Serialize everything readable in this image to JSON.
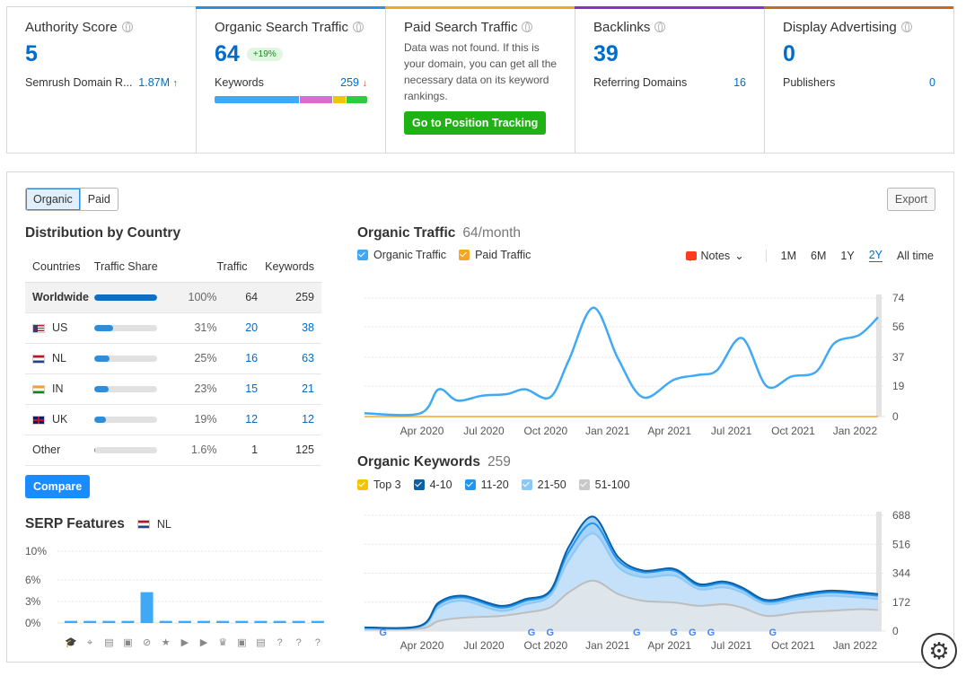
{
  "colors": {
    "accent": "#006dca",
    "traffic": "#3fa9f5",
    "paid": "#f5a623",
    "green": "#1fb214"
  },
  "cards": {
    "authority": {
      "title": "Authority Score",
      "value": "5",
      "row_label": "Semrush Domain R...",
      "row_value": "1.87M",
      "arrow": "↑"
    },
    "organic": {
      "title": "Organic Search Traffic",
      "value": "64",
      "badge": "+19%",
      "row_label": "Keywords",
      "row_value": "259",
      "arrow": "↓",
      "keyword_bar": [
        {
          "pct": 56,
          "color": "#3fa9f5"
        },
        {
          "pct": 22,
          "color": "#d66fd1"
        },
        {
          "pct": 8,
          "color": "#f5c400"
        },
        {
          "pct": 14,
          "color": "#2ecc40"
        }
      ]
    },
    "paid": {
      "title": "Paid Search Traffic",
      "text": "Data was not found. If this is your domain, you can get all the necessary data on its keyword rankings.",
      "button": "Go to Position Tracking"
    },
    "backlinks": {
      "title": "Backlinks",
      "value": "39",
      "row_label": "Referring Domains",
      "row_value": "16"
    },
    "display": {
      "title": "Display Advertising",
      "value": "0",
      "row_label": "Publishers",
      "row_value": "0"
    }
  },
  "toggle": {
    "organic": "Organic",
    "paid": "Paid"
  },
  "export": "Export",
  "distribution": {
    "title": "Distribution by Country",
    "headers": [
      "Countries",
      "Traffic Share",
      "Traffic",
      "Keywords"
    ],
    "rows": [
      {
        "country": "Worldwide",
        "flag": "",
        "share": 100,
        "share_label": "100%",
        "traffic": "64",
        "keywords": "259"
      },
      {
        "country": "US",
        "flag": "us",
        "share": 31,
        "share_label": "31%",
        "traffic": "20",
        "keywords": "38"
      },
      {
        "country": "NL",
        "flag": "nl",
        "share": 25,
        "share_label": "25%",
        "traffic": "16",
        "keywords": "63"
      },
      {
        "country": "IN",
        "flag": "in",
        "share": 23,
        "share_label": "23%",
        "traffic": "15",
        "keywords": "21"
      },
      {
        "country": "UK",
        "flag": "uk",
        "share": 19,
        "share_label": "19%",
        "traffic": "12",
        "keywords": "12"
      },
      {
        "country": "Other",
        "flag": "",
        "share": 1.6,
        "share_label": "1.6%",
        "traffic": "1",
        "keywords": "125"
      }
    ],
    "compare": "Compare"
  },
  "serp": {
    "title": "SERP Features",
    "country": "NL"
  },
  "traffic": {
    "title": "Organic Traffic",
    "subtitle": "64/month",
    "legend": [
      "Organic Traffic",
      "Paid Traffic"
    ],
    "notes": "Notes",
    "periods": [
      "1M",
      "6M",
      "1Y",
      "2Y",
      "All time"
    ],
    "selected_period": "2Y"
  },
  "keywords": {
    "title": "Organic Keywords",
    "subtitle": "259",
    "legend": [
      {
        "label": "Top 3",
        "color": "#f5c400"
      },
      {
        "label": "4-10",
        "color": "#0b5fa5"
      },
      {
        "label": "11-20",
        "color": "#2196f3"
      },
      {
        "label": "21-50",
        "color": "#8cc8f5"
      },
      {
        "label": "51-100",
        "color": "#c9c9c9"
      }
    ]
  },
  "chart_data": [
    {
      "type": "line",
      "title": "Organic Traffic",
      "x_ticks": [
        "Apr 2020",
        "Jul 2020",
        "Oct 2020",
        "Jan 2021",
        "Apr 2021",
        "Jul 2021",
        "Oct 2021",
        "Jan 2022"
      ],
      "ylim": [
        0,
        74
      ],
      "y_ticks": [
        0,
        19,
        37,
        56,
        74
      ],
      "series": [
        {
          "name": "Organic Traffic",
          "color": "#3fa9f5",
          "points": [
            [
              0,
              2
            ],
            [
              0.9,
              2
            ],
            [
              1.2,
              17
            ],
            [
              1.5,
              10
            ],
            [
              1.9,
              13
            ],
            [
              2.3,
              14
            ],
            [
              2.6,
              17
            ],
            [
              3.0,
              12
            ],
            [
              3.3,
              35
            ],
            [
              3.7,
              68
            ],
            [
              4.1,
              36
            ],
            [
              4.5,
              12
            ],
            [
              5.0,
              23
            ],
            [
              5.4,
              26
            ],
            [
              5.7,
              29
            ],
            [
              6.1,
              49
            ],
            [
              6.5,
              19
            ],
            [
              6.9,
              25
            ],
            [
              7.3,
              28
            ],
            [
              7.6,
              46
            ],
            [
              8.0,
              51
            ],
            [
              8.3,
              62
            ]
          ]
        },
        {
          "name": "Paid Traffic",
          "color": "#f5a623",
          "points": [
            [
              0,
              0
            ],
            [
              8.3,
              0
            ]
          ]
        }
      ]
    },
    {
      "type": "area",
      "title": "Organic Keywords",
      "x_ticks": [
        "Apr 2020",
        "Jul 2020",
        "Oct 2020",
        "Jan 2021",
        "Apr 2021",
        "Jul 2021",
        "Oct 2021",
        "Jan 2022"
      ],
      "ylim": [
        0,
        688
      ],
      "y_ticks": [
        0,
        172,
        344,
        516,
        688
      ],
      "series": [
        {
          "name": "51-100",
          "color": "#c9c9c9",
          "points": [
            [
              0,
              10
            ],
            [
              0.9,
              15
            ],
            [
              1.2,
              60
            ],
            [
              1.6,
              80
            ],
            [
              2.2,
              90
            ],
            [
              2.6,
              110
            ],
            [
              3.0,
              140
            ],
            [
              3.3,
              230
            ],
            [
              3.7,
              300
            ],
            [
              4.1,
              220
            ],
            [
              4.5,
              180
            ],
            [
              5.0,
              170
            ],
            [
              5.4,
              150
            ],
            [
              5.8,
              160
            ],
            [
              6.1,
              140
            ],
            [
              6.5,
              90
            ],
            [
              7.0,
              110
            ],
            [
              7.5,
              120
            ],
            [
              8.0,
              130
            ],
            [
              8.3,
              125
            ]
          ]
        },
        {
          "name": "21-50",
          "color": "#8cc8f5",
          "points": [
            [
              0,
              15
            ],
            [
              0.9,
              25
            ],
            [
              1.2,
              140
            ],
            [
              1.6,
              180
            ],
            [
              2.2,
              120
            ],
            [
              2.6,
              160
            ],
            [
              3.0,
              210
            ],
            [
              3.3,
              420
            ],
            [
              3.7,
              580
            ],
            [
              4.1,
              380
            ],
            [
              4.5,
              320
            ],
            [
              5.0,
              330
            ],
            [
              5.4,
              250
            ],
            [
              5.8,
              260
            ],
            [
              6.1,
              230
            ],
            [
              6.5,
              160
            ],
            [
              7.0,
              190
            ],
            [
              7.5,
              210
            ],
            [
              8.0,
              200
            ],
            [
              8.3,
              190
            ]
          ]
        },
        {
          "name": "11-20",
          "color": "#2196f3",
          "points": [
            [
              0,
              20
            ],
            [
              0.9,
              30
            ],
            [
              1.2,
              160
            ],
            [
              1.6,
              200
            ],
            [
              2.2,
              140
            ],
            [
              2.6,
              180
            ],
            [
              3.0,
              230
            ],
            [
              3.3,
              470
            ],
            [
              3.7,
              640
            ],
            [
              4.1,
              420
            ],
            [
              4.5,
              350
            ],
            [
              5.0,
              360
            ],
            [
              5.4,
              270
            ],
            [
              5.8,
              285
            ],
            [
              6.1,
              250
            ],
            [
              6.5,
              175
            ],
            [
              7.0,
              205
            ],
            [
              7.5,
              230
            ],
            [
              8.0,
              220
            ],
            [
              8.3,
              210
            ]
          ]
        },
        {
          "name": "4-10",
          "color": "#0b5fa5",
          "points": [
            [
              0,
              22
            ],
            [
              0.9,
              32
            ],
            [
              1.2,
              170
            ],
            [
              1.6,
              210
            ],
            [
              2.2,
              150
            ],
            [
              2.6,
              190
            ],
            [
              3.0,
              240
            ],
            [
              3.3,
              500
            ],
            [
              3.7,
              680
            ],
            [
              4.1,
              440
            ],
            [
              4.5,
              360
            ],
            [
              5.0,
              370
            ],
            [
              5.4,
              280
            ],
            [
              5.8,
              295
            ],
            [
              6.1,
              260
            ],
            [
              6.5,
              185
            ],
            [
              7.0,
              215
            ],
            [
              7.5,
              240
            ],
            [
              8.0,
              230
            ],
            [
              8.3,
              220
            ]
          ]
        }
      ]
    },
    {
      "type": "bar",
      "title": "SERP Features",
      "y_ticks": [
        "0%",
        "3%",
        "6%",
        "10%"
      ],
      "ylim": [
        0,
        10
      ],
      "values": [
        0.3,
        0.3,
        0.3,
        0.3,
        4.3,
        0.3,
        0.3,
        0.3,
        0.3,
        0.3,
        0.3,
        0.3,
        0.3,
        0.3
      ],
      "icons": [
        "graduation-cap-icon",
        "map-pin-icon",
        "document-icon",
        "image-icon",
        "link-icon",
        "star-icon",
        "play-icon",
        "video-icon",
        "crown-icon",
        "photo-icon",
        "newspaper-icon",
        "faq-icon",
        "question-icon",
        "help-icon"
      ]
    }
  ]
}
